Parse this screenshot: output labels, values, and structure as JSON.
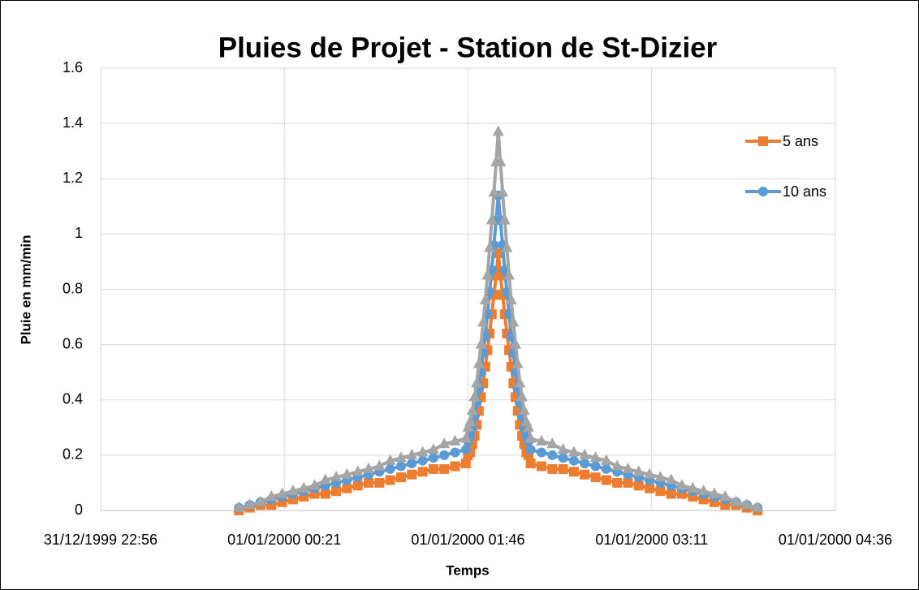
{
  "chart_data": {
    "type": "line",
    "title": "Pluies de Projet - Station de St-Dizier",
    "xlabel": "Temps",
    "ylabel": "Pluie en mm/min",
    "x": [
      "01/01/2000 00:00",
      "01/01/2000 00:05",
      "01/01/2000 00:10",
      "01/01/2000 00:15",
      "01/01/2000 00:20",
      "01/01/2000 00:25",
      "01/01/2000 00:30",
      "01/01/2000 00:35",
      "01/01/2000 00:40",
      "01/01/2000 00:45",
      "01/01/2000 00:50",
      "01/01/2000 00:55",
      "01/01/2000 01:00",
      "01/01/2000 01:05",
      "01/01/2000 01:10",
      "01/01/2000 01:15",
      "01/01/2000 01:20",
      "01/01/2000 01:25",
      "01/01/2000 01:30",
      "01/01/2000 01:35",
      "01/01/2000 01:40",
      "01/01/2000 01:45",
      "01/01/2000 01:46",
      "01/01/2000 01:47",
      "01/01/2000 01:48",
      "01/01/2000 01:49",
      "01/01/2000 01:50",
      "01/01/2000 01:51",
      "01/01/2000 01:52",
      "01/01/2000 01:53",
      "01/01/2000 01:54",
      "01/01/2000 01:55",
      "01/01/2000 01:56",
      "01/01/2000 01:57",
      "01/01/2000 01:58",
      "01/01/2000 01:59",
      "01/01/2000 02:00",
      "01/01/2000 02:01",
      "01/01/2000 02:02",
      "01/01/2000 02:03",
      "01/01/2000 02:04",
      "01/01/2000 02:05",
      "01/01/2000 02:06",
      "01/01/2000 02:07",
      "01/01/2000 02:08",
      "01/01/2000 02:09",
      "01/01/2000 02:10",
      "01/01/2000 02:11",
      "01/01/2000 02:12",
      "01/01/2000 02:13",
      "01/01/2000 02:14",
      "01/01/2000 02:15",
      "01/01/2000 02:20",
      "01/01/2000 02:25",
      "01/01/2000 02:30",
      "01/01/2000 02:35",
      "01/01/2000 02:40",
      "01/01/2000 02:45",
      "01/01/2000 02:50",
      "01/01/2000 02:55",
      "01/01/2000 03:00",
      "01/01/2000 03:05",
      "01/01/2000 03:10",
      "01/01/2000 03:15",
      "01/01/2000 03:20",
      "01/01/2000 03:25",
      "01/01/2000 03:30",
      "01/01/2000 03:35",
      "01/01/2000 03:40",
      "01/01/2000 03:45",
      "01/01/2000 03:50",
      "01/01/2000 03:55",
      "01/01/2000 04:00"
    ],
    "series": [
      {
        "name": "5 ans",
        "color": "#ed7d31",
        "marker": "square",
        "values": [
          0,
          0.01,
          0.02,
          0.02,
          0.03,
          0.04,
          0.05,
          0.06,
          0.06,
          0.07,
          0.08,
          0.09,
          0.1,
          0.1,
          0.11,
          0.12,
          0.13,
          0.14,
          0.15,
          0.15,
          0.16,
          0.17,
          0.2,
          0.21,
          0.24,
          0.27,
          0.31,
          0.36,
          0.41,
          0.46,
          0.52,
          0.58,
          0.64,
          0.71,
          0.78,
          0.85,
          0.93,
          0.85,
          0.78,
          0.71,
          0.64,
          0.58,
          0.52,
          0.46,
          0.41,
          0.36,
          0.31,
          0.27,
          0.24,
          0.21,
          0.2,
          0.17,
          0.16,
          0.15,
          0.15,
          0.14,
          0.13,
          0.12,
          0.11,
          0.1,
          0.1,
          0.09,
          0.08,
          0.07,
          0.06,
          0.06,
          0.05,
          0.04,
          0.03,
          0.02,
          0.02,
          0.01,
          0
        ]
      },
      {
        "name": "10 ans",
        "color": "#5b9bd5",
        "marker": "circle",
        "values": [
          0.01,
          0.02,
          0.03,
          0.04,
          0.05,
          0.06,
          0.07,
          0.08,
          0.09,
          0.1,
          0.11,
          0.12,
          0.13,
          0.14,
          0.15,
          0.16,
          0.17,
          0.18,
          0.19,
          0.2,
          0.21,
          0.22,
          0.25,
          0.27,
          0.3,
          0.34,
          0.39,
          0.44,
          0.5,
          0.57,
          0.63,
          0.71,
          0.79,
          0.87,
          0.96,
          1.05,
          1.14,
          1.05,
          0.96,
          0.87,
          0.79,
          0.71,
          0.63,
          0.57,
          0.5,
          0.44,
          0.39,
          0.34,
          0.3,
          0.27,
          0.25,
          0.22,
          0.21,
          0.2,
          0.19,
          0.18,
          0.17,
          0.16,
          0.15,
          0.14,
          0.13,
          0.12,
          0.11,
          0.1,
          0.09,
          0.08,
          0.07,
          0.06,
          0.05,
          0.04,
          0.03,
          0.02,
          0.01
        ]
      },
      {
        "color": "#a5a5a5",
        "marker": "triangle",
        "values": [
          0.01,
          0.02,
          0.03,
          0.05,
          0.06,
          0.07,
          0.08,
          0.09,
          0.11,
          0.12,
          0.13,
          0.14,
          0.15,
          0.16,
          0.18,
          0.19,
          0.2,
          0.21,
          0.22,
          0.24,
          0.25,
          0.26,
          0.3,
          0.32,
          0.36,
          0.41,
          0.46,
          0.53,
          0.6,
          0.68,
          0.76,
          0.85,
          0.95,
          1.05,
          1.15,
          1.26,
          1.37,
          1.26,
          1.15,
          1.05,
          0.95,
          0.85,
          0.76,
          0.68,
          0.6,
          0.53,
          0.46,
          0.41,
          0.36,
          0.32,
          0.3,
          0.26,
          0.25,
          0.24,
          0.22,
          0.21,
          0.2,
          0.19,
          0.18,
          0.16,
          0.15,
          0.14,
          0.13,
          0.12,
          0.11,
          0.09,
          0.08,
          0.07,
          0.06,
          0.05,
          0.03,
          0.02,
          0.01
        ]
      }
    ],
    "xlim": [
      "31/12/1999 22:56",
      "01/01/2000 04:36"
    ],
    "xticks": [
      "31/12/1999 22:56",
      "01/01/2000 00:21",
      "01/01/2000 01:46",
      "01/01/2000 03:11",
      "01/01/2000 04:36"
    ],
    "ylim": [
      0,
      1.6
    ],
    "yticks": [
      0,
      0.2,
      0.4,
      0.6,
      0.8,
      1,
      1.2,
      1.4,
      1.6
    ],
    "grid": true,
    "legend": "right"
  }
}
